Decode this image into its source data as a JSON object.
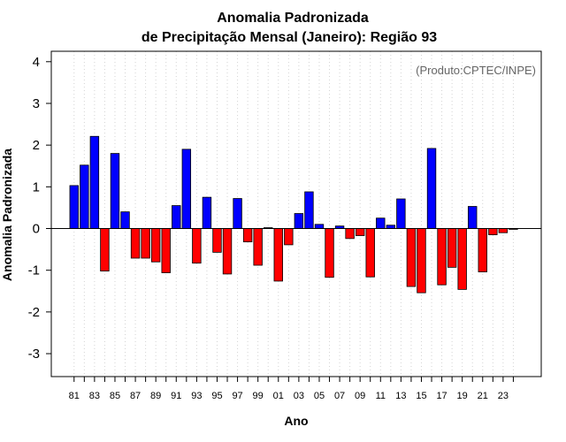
{
  "chart_data": {
    "type": "bar",
    "title": "Anomalia Padronizada",
    "subtitle": "de Precipitação Mensal (Janeiro): Região 93",
    "xlabel": "Ano",
    "ylabel": "Anomalia Padronizada",
    "annotation": "(Produto:CPTEC/INPE)",
    "ylim": [
      -3.55,
      4.25
    ],
    "yticks": [
      -3,
      -2,
      -1,
      0,
      1,
      2,
      3,
      4
    ],
    "grid": "vertical dotted",
    "colors": {
      "positive": "#0000ff",
      "negative": "#ff0000",
      "grid": "#d3d3d3"
    },
    "xtick_labels": [
      "81",
      "83",
      "85",
      "87",
      "89",
      "91",
      "93",
      "95",
      "97",
      "99",
      "01",
      "03",
      "05",
      "07",
      "09",
      "11",
      "13",
      "15",
      "17",
      "19",
      "21",
      "23"
    ],
    "categories": [
      "1981",
      "1982",
      "1983",
      "1984",
      "1985",
      "1986",
      "1987",
      "1988",
      "1989",
      "1990",
      "1991",
      "1992",
      "1993",
      "1994",
      "1995",
      "1996",
      "1997",
      "1998",
      "1999",
      "2000",
      "2001",
      "2002",
      "2003",
      "2004",
      "2005",
      "2006",
      "2007",
      "2008",
      "2009",
      "2010",
      "2011",
      "2012",
      "2013",
      "2014",
      "2015",
      "2016",
      "2017",
      "2018",
      "2019",
      "2020",
      "2021",
      "2022",
      "2023",
      "2024"
    ],
    "values": [
      1.03,
      1.52,
      2.21,
      -1.02,
      1.8,
      0.4,
      -0.71,
      -0.71,
      -0.8,
      -1.06,
      0.55,
      1.9,
      -0.83,
      0.75,
      -0.57,
      -1.09,
      0.72,
      -0.32,
      -0.88,
      0.02,
      -1.26,
      -0.39,
      0.36,
      0.88,
      0.1,
      -1.17,
      0.06,
      -0.24,
      -0.17,
      -1.16,
      0.25,
      0.08,
      0.71,
      -1.39,
      -1.54,
      1.92,
      -1.35,
      -0.93,
      -1.46,
      0.53,
      -1.04,
      -0.15,
      -0.1,
      -0.02
    ]
  }
}
